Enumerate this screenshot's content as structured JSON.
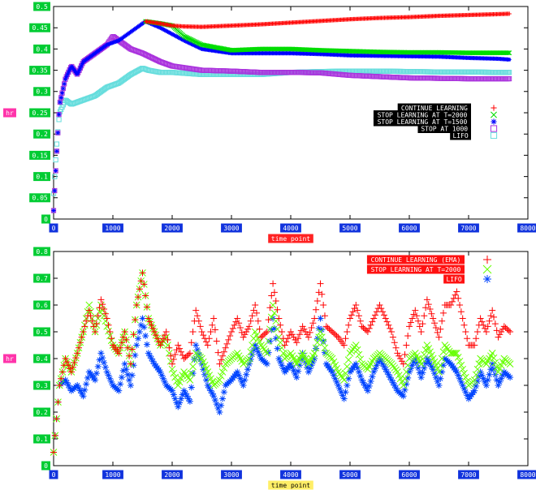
{
  "chart_data": [
    {
      "type": "scatter",
      "xlabel": "time point",
      "ylabel": "hr",
      "xlim": [
        0,
        8000
      ],
      "ylim": [
        0,
        0.5
      ],
      "x_ticks": [
        "0",
        "1000",
        "2000",
        "3000",
        "4000",
        "5000",
        "6000",
        "7000",
        "8000"
      ],
      "y_ticks": [
        "0",
        "0.05",
        "0.1",
        "0.15",
        "0.2",
        "0.25",
        "0.3",
        "0.35",
        "0.4",
        "0.45",
        "0.5"
      ],
      "legend_position": "right-center",
      "grid": false,
      "series": [
        {
          "name": "CONTINUE LEARNING",
          "marker": "+",
          "color": "#ff0000",
          "x": [
            1550,
            1800,
            2000,
            2200,
            2500,
            3000,
            3500,
            4000,
            4500,
            5000,
            5500,
            6000,
            6500,
            7000,
            7500,
            7700
          ],
          "y": [
            0.465,
            0.46,
            0.455,
            0.453,
            0.452,
            0.455,
            0.458,
            0.462,
            0.466,
            0.47,
            0.473,
            0.475,
            0.478,
            0.48,
            0.482,
            0.483
          ]
        },
        {
          "name": "STOP LEARNING AT T=2000",
          "marker": "x",
          "color": "#00dd00",
          "x": [
            1550,
            1800,
            2000,
            2200,
            2500,
            3000,
            3500,
            4000,
            4500,
            5000,
            5500,
            6000,
            6500,
            7000,
            7500,
            7700
          ],
          "y": [
            0.465,
            0.46,
            0.455,
            0.43,
            0.41,
            0.397,
            0.4,
            0.4,
            0.397,
            0.395,
            0.393,
            0.392,
            0.392,
            0.391,
            0.391,
            0.391
          ]
        },
        {
          "name": "STOP LEARNING AT T=1500",
          "marker": "*",
          "color": "#0000ff",
          "x": [
            0,
            50,
            100,
            200,
            300,
            400,
            500,
            700,
            900,
            1100,
            1300,
            1500,
            1550,
            1800,
            2000,
            2200,
            2500,
            3000,
            3500,
            4000,
            4500,
            5000,
            5500,
            6000,
            6500,
            7000,
            7500,
            7700
          ],
          "y": [
            0.02,
            0.15,
            0.27,
            0.33,
            0.36,
            0.34,
            0.37,
            0.39,
            0.41,
            0.42,
            0.44,
            0.46,
            0.465,
            0.45,
            0.435,
            0.42,
            0.4,
            0.39,
            0.39,
            0.39,
            0.388,
            0.385,
            0.384,
            0.383,
            0.382,
            0.379,
            0.377,
            0.375
          ]
        },
        {
          "name": "STOP AT 1000",
          "marker": "square",
          "color": "#aa33dd",
          "x": [
            0,
            50,
            100,
            200,
            300,
            400,
            500,
            700,
            900,
            1000,
            1100,
            1300,
            1500,
            1800,
            2000,
            2500,
            3000,
            3500,
            4000,
            4500,
            5000,
            5500,
            6000,
            6500,
            7000,
            7500,
            7700
          ],
          "y": [
            0.02,
            0.15,
            0.27,
            0.33,
            0.36,
            0.34,
            0.37,
            0.39,
            0.41,
            0.43,
            0.42,
            0.4,
            0.39,
            0.37,
            0.36,
            0.35,
            0.348,
            0.345,
            0.345,
            0.344,
            0.338,
            0.335,
            0.332,
            0.331,
            0.33,
            0.33,
            0.33
          ]
        },
        {
          "name": "LIFO",
          "marker": "square",
          "color": "#66dddd",
          "x": [
            0,
            50,
            100,
            200,
            300,
            500,
            700,
            900,
            1100,
            1300,
            1500,
            1600,
            1800,
            2000,
            2500,
            3000,
            3500,
            4000,
            4500,
            5000,
            5500,
            6000,
            6500,
            7000,
            7500,
            7700
          ],
          "y": [
            0.06,
            0.17,
            0.25,
            0.28,
            0.27,
            0.28,
            0.29,
            0.31,
            0.32,
            0.34,
            0.355,
            0.35,
            0.345,
            0.345,
            0.34,
            0.34,
            0.34,
            0.345,
            0.347,
            0.348,
            0.348,
            0.347,
            0.346,
            0.346,
            0.345,
            0.345
          ]
        }
      ]
    },
    {
      "type": "scatter",
      "xlabel": "time point",
      "ylabel": "hr",
      "xlim": [
        0,
        8000
      ],
      "ylim": [
        0,
        0.8
      ],
      "x_ticks": [
        "0",
        "1000",
        "2000",
        "3000",
        "4000",
        "5000",
        "6000",
        "7000",
        "8000"
      ],
      "y_ticks": [
        "0",
        "0.1",
        "0.2",
        "0.3",
        "0.4",
        "0.5",
        "0.6",
        "0.7",
        "0.8"
      ],
      "legend_position": "top-right",
      "grid": false,
      "series": [
        {
          "name": "CONTINUE LEARNING (EMA)",
          "marker": "+",
          "color": "#ff0000",
          "x": [
            0,
            100,
            200,
            300,
            400,
            500,
            600,
            700,
            800,
            900,
            1000,
            1100,
            1200,
            1300,
            1400,
            1500,
            1600,
            1700,
            1800,
            1900,
            2000,
            2100,
            2200,
            2300,
            2400,
            2500,
            2600,
            2700,
            2800,
            2900,
            3000,
            3100,
            3200,
            3300,
            3400,
            3500,
            3600,
            3700,
            3800,
            3900,
            4000,
            4100,
            4200,
            4300,
            4400,
            4500,
            4600,
            4700,
            4800,
            4900,
            5000,
            5100,
            5200,
            5300,
            5400,
            5500,
            5600,
            5700,
            5800,
            5900,
            6000,
            6100,
            6200,
            6300,
            6400,
            6500,
            6600,
            6700,
            6800,
            6900,
            7000,
            7100,
            7200,
            7300,
            7400,
            7500,
            7600,
            7700
          ],
          "y": [
            0.05,
            0.3,
            0.4,
            0.35,
            0.42,
            0.5,
            0.58,
            0.5,
            0.62,
            0.55,
            0.45,
            0.42,
            0.5,
            0.38,
            0.6,
            0.72,
            0.55,
            0.5,
            0.45,
            0.5,
            0.38,
            0.45,
            0.4,
            0.42,
            0.58,
            0.5,
            0.45,
            0.55,
            0.38,
            0.44,
            0.5,
            0.55,
            0.48,
            0.52,
            0.6,
            0.48,
            0.5,
            0.68,
            0.55,
            0.45,
            0.5,
            0.46,
            0.52,
            0.48,
            0.55,
            0.68,
            0.52,
            0.5,
            0.48,
            0.45,
            0.55,
            0.6,
            0.52,
            0.5,
            0.55,
            0.6,
            0.55,
            0.5,
            0.42,
            0.38,
            0.52,
            0.58,
            0.5,
            0.62,
            0.55,
            0.48,
            0.6,
            0.6,
            0.65,
            0.55,
            0.45,
            0.45,
            0.55,
            0.5,
            0.58,
            0.48,
            0.52,
            0.5
          ]
        },
        {
          "name": "STOP LEARNING AT T=2000",
          "marker": "x",
          "color": "#66ff00",
          "x": [
            0,
            100,
            200,
            300,
            400,
            500,
            600,
            700,
            800,
            900,
            1000,
            1100,
            1200,
            1300,
            1400,
            1500,
            1600,
            1700,
            1800,
            1900,
            2000,
            2100,
            2200,
            2300,
            2400,
            2500,
            2600,
            2700,
            2800,
            2900,
            3000,
            3100,
            3200,
            3300,
            3400,
            3500,
            3600,
            3700,
            3800,
            3900,
            4000,
            4100,
            4200,
            4300,
            4400,
            4500,
            4600,
            4700,
            4800,
            4900,
            5000,
            5100,
            5200,
            5300,
            5400,
            5500,
            5600,
            5700,
            5800,
            5900,
            6000,
            6100,
            6200,
            6300,
            6400,
            6500,
            6600,
            6700,
            6800,
            6900,
            7000,
            7100,
            7200,
            7300,
            7400,
            7500,
            7600,
            7700
          ],
          "y": [
            0.05,
            0.3,
            0.4,
            0.35,
            0.42,
            0.5,
            0.6,
            0.5,
            0.6,
            0.52,
            0.45,
            0.42,
            0.5,
            0.38,
            0.6,
            0.72,
            0.55,
            0.5,
            0.45,
            0.48,
            0.36,
            0.3,
            0.35,
            0.32,
            0.42,
            0.4,
            0.35,
            0.3,
            0.32,
            0.38,
            0.4,
            0.42,
            0.38,
            0.4,
            0.5,
            0.45,
            0.42,
            0.6,
            0.48,
            0.4,
            0.42,
            0.38,
            0.42,
            0.38,
            0.42,
            0.5,
            0.42,
            0.4,
            0.35,
            0.32,
            0.42,
            0.45,
            0.38,
            0.36,
            0.4,
            0.42,
            0.4,
            0.38,
            0.35,
            0.3,
            0.4,
            0.42,
            0.38,
            0.45,
            0.4,
            0.35,
            0.45,
            0.42,
            0.42,
            0.36,
            0.3,
            0.32,
            0.4,
            0.38,
            0.42,
            0.35,
            0.4,
            0.38
          ]
        },
        {
          "name": "LIFO",
          "marker": "*",
          "color": "#0044ff",
          "x": [
            0,
            100,
            200,
            300,
            400,
            500,
            600,
            700,
            800,
            900,
            1000,
            1100,
            1200,
            1300,
            1400,
            1500,
            1600,
            1700,
            1800,
            1900,
            2000,
            2100,
            2200,
            2300,
            2400,
            2500,
            2600,
            2700,
            2800,
            2900,
            3000,
            3100,
            3200,
            3300,
            3400,
            3500,
            3600,
            3700,
            3800,
            3900,
            4000,
            4100,
            4200,
            4300,
            4400,
            4500,
            4600,
            4700,
            4800,
            4900,
            5000,
            5100,
            5200,
            5300,
            5400,
            5500,
            5600,
            5700,
            5800,
            5900,
            6000,
            6100,
            6200,
            6300,
            6400,
            6500,
            6600,
            6700,
            6800,
            6900,
            7000,
            7100,
            7200,
            7300,
            7400,
            7500,
            7600,
            7700
          ],
          "y": [
            0.05,
            0.3,
            0.32,
            0.28,
            0.3,
            0.26,
            0.35,
            0.32,
            0.42,
            0.35,
            0.3,
            0.28,
            0.38,
            0.3,
            0.45,
            0.55,
            0.42,
            0.38,
            0.35,
            0.3,
            0.28,
            0.22,
            0.28,
            0.24,
            0.45,
            0.38,
            0.3,
            0.26,
            0.2,
            0.3,
            0.32,
            0.35,
            0.3,
            0.38,
            0.45,
            0.4,
            0.38,
            0.55,
            0.4,
            0.35,
            0.38,
            0.33,
            0.42,
            0.35,
            0.4,
            0.55,
            0.38,
            0.35,
            0.3,
            0.25,
            0.35,
            0.38,
            0.32,
            0.28,
            0.35,
            0.4,
            0.36,
            0.32,
            0.28,
            0.26,
            0.35,
            0.4,
            0.33,
            0.4,
            0.36,
            0.3,
            0.4,
            0.38,
            0.35,
            0.3,
            0.25,
            0.28,
            0.35,
            0.3,
            0.38,
            0.3,
            0.35,
            0.33
          ]
        }
      ]
    }
  ]
}
